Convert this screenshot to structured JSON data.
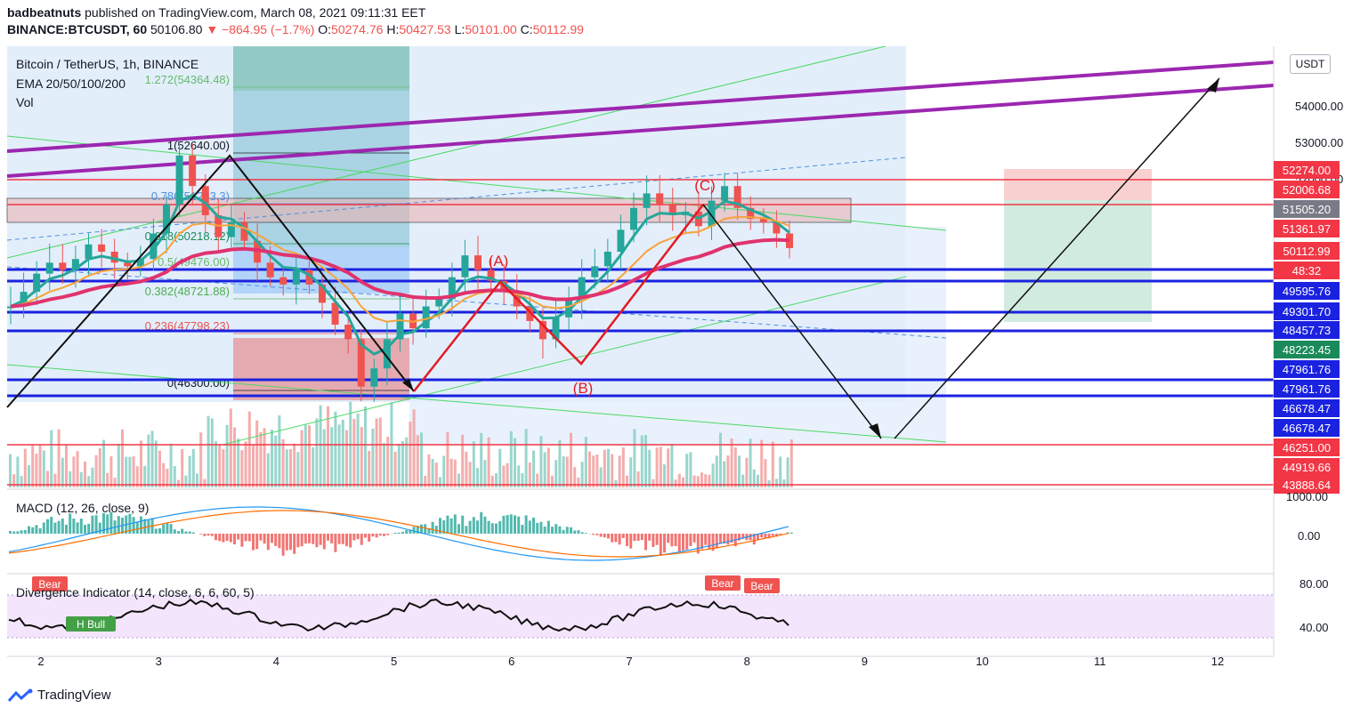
{
  "header": {
    "publisher": "badbeatnuts",
    "published_text": "published on TradingView.com, March 08, 2021 09:11:31 EET",
    "symbol": "BINANCE:BTCUSDT, 60",
    "last": "50106.80",
    "change": "▼ −864.95 (−1.7%)",
    "o_label": "O:",
    "o_value": "50274.76",
    "h_label": "H:",
    "h_value": "50427.53",
    "l_label": "L:",
    "l_value": "50101.00",
    "c_label": "C:",
    "c_value": "50112.99"
  },
  "legend": {
    "title": "Bitcoin / TetherUS, 1h, BINANCE",
    "ema": "EMA 20/50/100/200",
    "vol": "Vol",
    "macd": "MACD (12, 26, close, 9)",
    "divergence": "Divergence Indicator (14, close, 6, 6, 60, 5)"
  },
  "currency_badge": "USDT",
  "footer": {
    "brand": "TradingView"
  },
  "colors": {
    "up": "#26a69a",
    "down": "#ef5350",
    "ema20": "#26a69a",
    "ema50": "#f7a33a",
    "ema200": "#e0336e",
    "purple": "#9c27b0",
    "blue_level": "#1a22e0",
    "red_level": "#f23645",
    "green_channel": "#4cd964",
    "fib": "#22ab94"
  },
  "chart_data": {
    "type": "candlestick",
    "xlabel": "",
    "ylabel": "",
    "x_ticks": [
      "2",
      "3",
      "4",
      "5",
      "6",
      "7",
      "8",
      "9",
      "10",
      "11",
      "12"
    ],
    "y_ticks": [
      "54000.00",
      "53000.00",
      "52000.00"
    ],
    "price_axis_labels": [
      {
        "text": "52274.00",
        "style": "red"
      },
      {
        "text": "52006.68",
        "style": "red"
      },
      {
        "text": "51505.20",
        "style": "gray"
      },
      {
        "text": "51361.97",
        "style": "red"
      },
      {
        "text": "50112.99",
        "style": "red"
      },
      {
        "text": "48:32",
        "style": "red"
      },
      {
        "text": "49595.76",
        "style": "blue"
      },
      {
        "text": "49301.70",
        "style": "blue"
      },
      {
        "text": "48457.73",
        "style": "blue"
      },
      {
        "text": "48223.45",
        "style": "green"
      },
      {
        "text": "47961.76",
        "style": "blue"
      },
      {
        "text": "47961.76",
        "style": "blue"
      },
      {
        "text": "46678.47",
        "style": "blue"
      },
      {
        "text": "46678.47",
        "style": "blue"
      },
      {
        "text": "46251.00",
        "style": "red"
      },
      {
        "text": "44919.66",
        "style": "red"
      },
      {
        "text": "43888.64",
        "style": "red"
      }
    ],
    "fib_levels": [
      {
        "label": "1.272(54364.48)"
      },
      {
        "label": "1(52640.00)"
      },
      {
        "label": "0.786(51283.3)"
      },
      {
        "label": "0.618(50218.12)"
      },
      {
        "label": "0.5(49476.00)"
      },
      {
        "label": "0.382(48721.88)"
      },
      {
        "label": "0.236(47798.23)"
      },
      {
        "label": "0(46300.00)"
      }
    ],
    "wave_labels": [
      "(A)",
      "(B)",
      "(C)"
    ],
    "macd_axis": [
      "1000.00",
      "0.00"
    ],
    "osc_axis": [
      "80.00",
      "40.00"
    ],
    "signals": [
      {
        "label": "Bear",
        "kind": "bear"
      },
      {
        "label": "H Bull",
        "kind": "bull"
      },
      {
        "label": "Bear",
        "kind": "bear"
      },
      {
        "label": "Bear",
        "kind": "bear"
      }
    ],
    "close_path": [
      48500,
      48900,
      49400,
      49700,
      49500,
      49800,
      50200,
      50000,
      49700,
      49600,
      49800,
      50500,
      51300,
      52640,
      51800,
      51000,
      50400,
      50800,
      50300,
      49700,
      49300,
      49100,
      49500,
      49100,
      48600,
      48000,
      47600,
      46300,
      46800,
      47600,
      48300,
      47900,
      48500,
      48700,
      49300,
      49900,
      49500,
      49200,
      48900,
      48500,
      48100,
      47600,
      48200,
      48700,
      49300,
      49600,
      50000,
      50600,
      51200,
      51600,
      51300,
      51000,
      51100,
      50700,
      51400,
      51800,
      51200,
      50900,
      50800,
      50500,
      50100
    ]
  }
}
